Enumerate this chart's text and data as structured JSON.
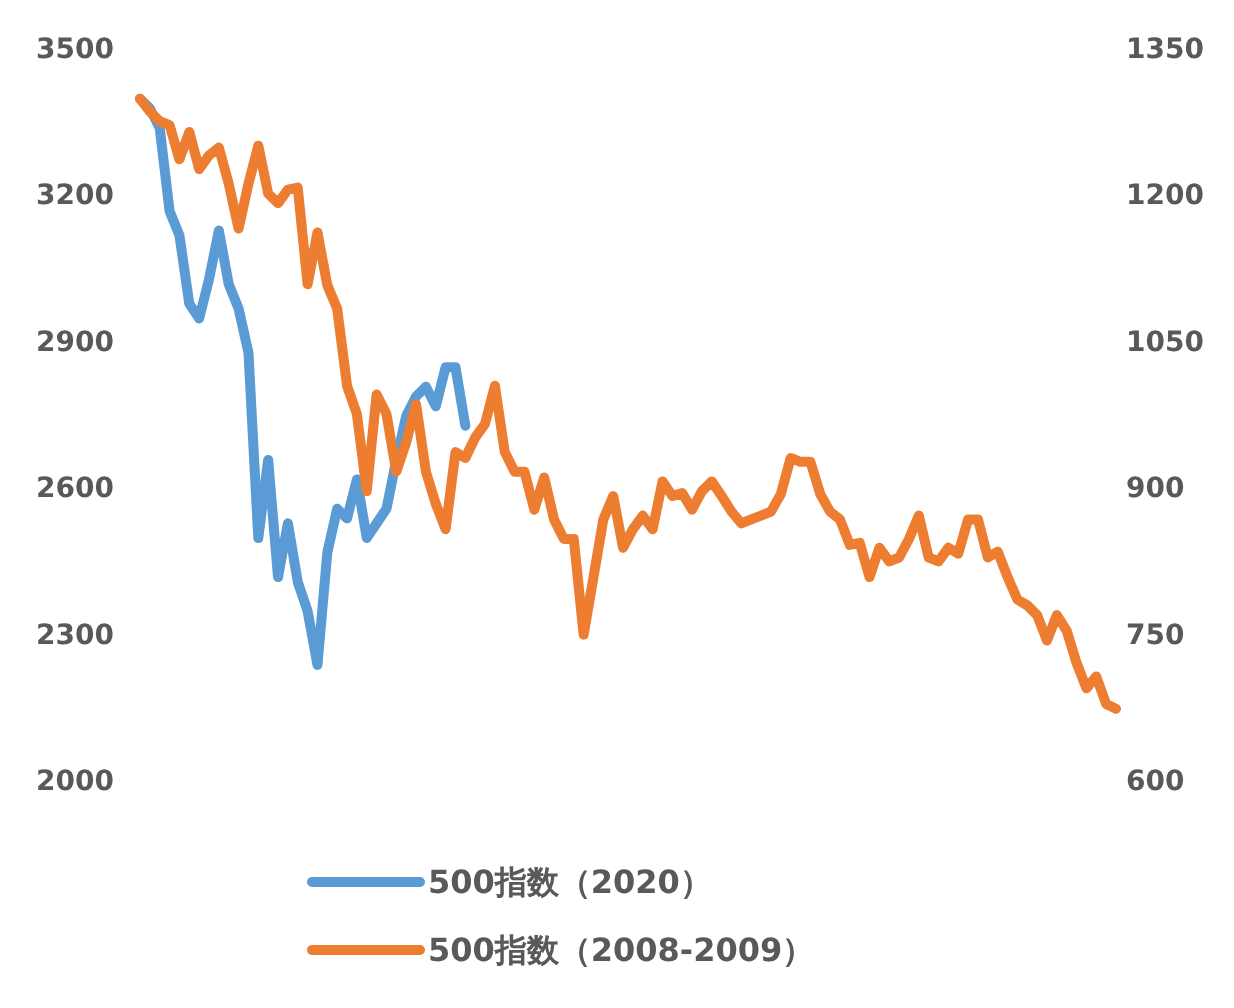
{
  "chart_data": {
    "type": "line",
    "categories": [
      null,
      null,
      null,
      null,
      null,
      null,
      null,
      null,
      null,
      null,
      null,
      null,
      null,
      null,
      null,
      null,
      null,
      null,
      null,
      null,
      null,
      null,
      null,
      null,
      null,
      null,
      null,
      null,
      null,
      null,
      null,
      null,
      null,
      null,
      null,
      null,
      null,
      null,
      null,
      null,
      null,
      null,
      null,
      null,
      null,
      null,
      null,
      null,
      null,
      null,
      null,
      null,
      null,
      null,
      null,
      null,
      null,
      null,
      null,
      null,
      null,
      null,
      null,
      null,
      null,
      null,
      null,
      null,
      null,
      null,
      null,
      null,
      null,
      null,
      null,
      null,
      null,
      null,
      null,
      null,
      null,
      null,
      null,
      null,
      null,
      null,
      null,
      null,
      null,
      null,
      null,
      null,
      null,
      null,
      null,
      null,
      null,
      null,
      null,
      null
    ],
    "series": [
      {
        "name": "500指数（2020）",
        "color": "#5b9bd5",
        "values": [
          3400,
          3380,
          3340,
          3170,
          3120,
          2980,
          2950,
          3030,
          3130,
          3020,
          2970,
          2880,
          2500,
          2660,
          2420,
          2530,
          2410,
          2350,
          2240,
          2470,
          2560,
          2540,
          2620,
          2500,
          2530,
          2560,
          2660,
          2750,
          2790,
          2810,
          2770,
          2850,
          2850,
          2730,
          null,
          null,
          null,
          null,
          null,
          null,
          null,
          null,
          null,
          null,
          null,
          null,
          null,
          null,
          null,
          null,
          null,
          null,
          null,
          null,
          null,
          null,
          null,
          null,
          null,
          null,
          null,
          null,
          null,
          null,
          null,
          null,
          null,
          null,
          null,
          null,
          null,
          null,
          null,
          null,
          null,
          null,
          null,
          null,
          null,
          null,
          null,
          null,
          null,
          null,
          null,
          null,
          null,
          null,
          null,
          null,
          null,
          null,
          null,
          null,
          null,
          null,
          null,
          null,
          null,
          null
        ]
      },
      {
        "name": "500指数（2008-2009）",
        "color": "#ed7d31",
        "axis": "y2",
        "values": [
          1300,
          1287,
          1277,
          1273,
          1238,
          1266,
          1228,
          1242,
          1250,
          1213,
          1167,
          1213,
          1252,
          1203,
          1193,
          1207,
          1209,
          1110,
          1163,
          1109,
          1085,
          1006,
          977,
          898,
          997,
          977,
          918,
          948,
          987,
          918,
          885,
          859,
          938,
          932,
          953,
          967,
          1006,
          938,
          918,
          918,
          879,
          912,
          869,
          849,
          849,
          751,
          810,
          869,
          893,
          840,
          859,
          873,
          859,
          908,
          893,
          896,
          879,
          898,
          908,
          893,
          877,
          865,
          869,
          873,
          877,
          895,
          932,
          928,
          928,
          895,
          877,
          869,
          843,
          845,
          810,
          840,
          826,
          830,
          849,
          873,
          830,
          826,
          840,
          834,
          869,
          869,
          830,
          836,
          810,
          787,
          781,
          771,
          745,
          771,
          755,
          722,
          696,
          708,
          680,
          675
        ]
      }
    ],
    "ylim": [
      2000,
      3500
    ],
    "yticks": [
      2000,
      2300,
      2600,
      2900,
      3200,
      3500
    ],
    "y2lim": [
      600,
      1350
    ],
    "y2ticks": [
      600,
      750,
      900,
      1050,
      1200,
      1350
    ],
    "legend": "bottom",
    "grid": false,
    "marker": "none",
    "line_style": "solid"
  }
}
